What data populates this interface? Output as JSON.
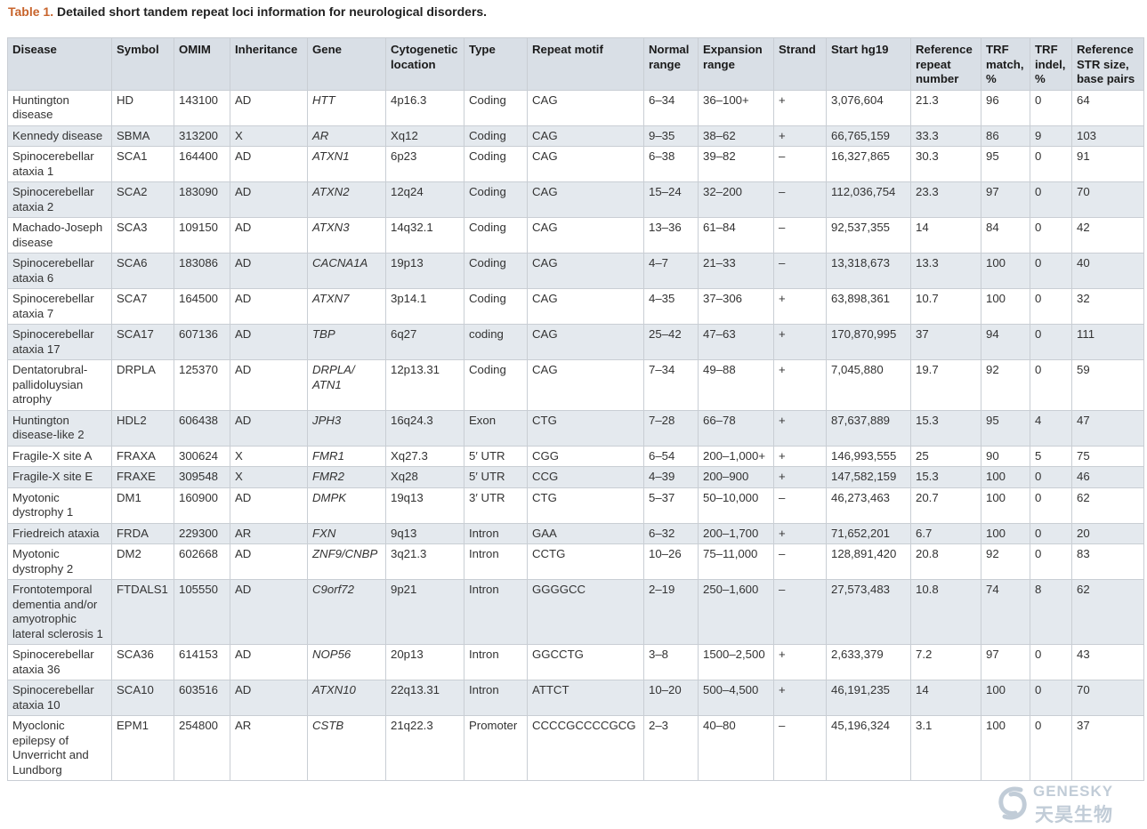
{
  "caption": {
    "label": "Table 1.",
    "text": "Detailed short tandem repeat loci information for neurological disorders."
  },
  "table": {
    "headers": [
      "Disease",
      "Symbol",
      "OMIM",
      "Inheritance",
      "Gene",
      "Cytogenetic location",
      "Type",
      "Repeat motif",
      "Normal range",
      "Expansion range",
      "Strand",
      "Start hg19",
      "Reference repeat number",
      "TRF match, %",
      "TRF indel, %",
      "Reference STR size, base pairs"
    ],
    "rows": [
      [
        "Huntington disease",
        "HD",
        "143100",
        "AD",
        "HTT",
        "4p16.3",
        "Coding",
        "CAG",
        "6–34",
        "36–100+",
        "+",
        "3,076,604",
        "21.3",
        "96",
        "0",
        "64"
      ],
      [
        "Kennedy disease",
        "SBMA",
        "313200",
        "X",
        "AR",
        "Xq12",
        "Coding",
        "CAG",
        "9–35",
        "38–62",
        "+",
        "66,765,159",
        "33.3",
        "86",
        "9",
        "103"
      ],
      [
        "Spinocerebellar ataxia 1",
        "SCA1",
        "164400",
        "AD",
        "ATXN1",
        "6p23",
        "Coding",
        "CAG",
        "6–38",
        "39–82",
        "–",
        "16,327,865",
        "30.3",
        "95",
        "0",
        "91"
      ],
      [
        "Spinocerebellar ataxia 2",
        "SCA2",
        "183090",
        "AD",
        "ATXN2",
        "12q24",
        "Coding",
        "CAG",
        "15–24",
        "32–200",
        "–",
        "112,036,754",
        "23.3",
        "97",
        "0",
        "70"
      ],
      [
        "Machado-Joseph disease",
        "SCA3",
        "109150",
        "AD",
        "ATXN3",
        "14q32.1",
        "Coding",
        "CAG",
        "13–36",
        "61–84",
        "–",
        "92,537,355",
        "14",
        "84",
        "0",
        "42"
      ],
      [
        "Spinocerebellar ataxia 6",
        "SCA6",
        "183086",
        "AD",
        "CACNA1A",
        "19p13",
        "Coding",
        "CAG",
        "4–7",
        "21–33",
        "–",
        "13,318,673",
        "13.3",
        "100",
        "0",
        "40"
      ],
      [
        "Spinocerebellar ataxia 7",
        "SCA7",
        "164500",
        "AD",
        "ATXN7",
        "3p14.1",
        "Coding",
        "CAG",
        "4–35",
        "37–306",
        "+",
        "63,898,361",
        "10.7",
        "100",
        "0",
        "32"
      ],
      [
        "Spinocerebellar ataxia 17",
        "SCA17",
        "607136",
        "AD",
        "TBP",
        "6q27",
        "coding",
        "CAG",
        "25–42",
        "47–63",
        "+",
        "170,870,995",
        "37",
        "94",
        "0",
        "111"
      ],
      [
        "Dentatorubral-pallidoluysian atrophy",
        "DRPLA",
        "125370",
        "AD",
        "DRPLA/ ATN1",
        "12p13.31",
        "Coding",
        "CAG",
        "7–34",
        "49–88",
        "+",
        "7,045,880",
        "19.7",
        "92",
        "0",
        "59"
      ],
      [
        "Huntington disease-like 2",
        "HDL2",
        "606438",
        "AD",
        "JPH3",
        "16q24.3",
        "Exon",
        "CTG",
        "7–28",
        "66–78",
        "+",
        "87,637,889",
        "15.3",
        "95",
        "4",
        "47"
      ],
      [
        "Fragile-X site A",
        "FRAXA",
        "300624",
        "X",
        "FMR1",
        "Xq27.3",
        "5′ UTR",
        "CGG",
        "6–54",
        "200–1,000+",
        "+",
        "146,993,555",
        "25",
        "90",
        "5",
        "75"
      ],
      [
        "Fragile-X site E",
        "FRAXE",
        "309548",
        "X",
        "FMR2",
        "Xq28",
        "5′ UTR",
        "CCG",
        "4–39",
        "200–900",
        "+",
        "147,582,159",
        "15.3",
        "100",
        "0",
        "46"
      ],
      [
        "Myotonic dystrophy 1",
        "DM1",
        "160900",
        "AD",
        "DMPK",
        "19q13",
        "3′ UTR",
        "CTG",
        "5–37",
        "50–10,000",
        "–",
        "46,273,463",
        "20.7",
        "100",
        "0",
        "62"
      ],
      [
        "Friedreich ataxia",
        "FRDA",
        "229300",
        "AR",
        "FXN",
        "9q13",
        "Intron",
        "GAA",
        "6–32",
        "200–1,700",
        "+",
        "71,652,201",
        "6.7",
        "100",
        "0",
        "20"
      ],
      [
        "Myotonic dystrophy 2",
        "DM2",
        "602668",
        "AD",
        "ZNF9/CNBP",
        "3q21.3",
        "Intron",
        "CCTG",
        "10–26",
        "75–11,000",
        "–",
        "128,891,420",
        "20.8",
        "92",
        "0",
        "83"
      ],
      [
        "Frontotemporal dementia and/or amyotrophic lateral sclerosis 1",
        "FTDALS1",
        "105550",
        "AD",
        "C9orf72",
        "9p21",
        "Intron",
        "GGGGCC",
        "2–19",
        "250–1,600",
        "–",
        "27,573,483",
        "10.8",
        "74",
        "8",
        "62"
      ],
      [
        "Spinocerebellar ataxia 36",
        "SCA36",
        "614153",
        "AD",
        "NOP56",
        "20p13",
        "Intron",
        "GGCCTG",
        "3–8",
        "1500–2,500",
        "+",
        "2,633,379",
        "7.2",
        "97",
        "0",
        "43"
      ],
      [
        "Spinocerebellar ataxia 10",
        "SCA10",
        "603516",
        "AD",
        "ATXN10",
        "22q13.31",
        "Intron",
        "ATTCT",
        "10–20",
        "500–4,500",
        "+",
        "46,191,235",
        "14",
        "100",
        "0",
        "70"
      ],
      [
        "Myoclonic epilepsy of Unverricht and Lundborg",
        "EPM1",
        "254800",
        "AR",
        "CSTB",
        "21q22.3",
        "Promoter",
        "CCCCGCCCCGCG",
        "2–3",
        "40–80",
        "–",
        "45,196,324",
        "3.1",
        "100",
        "0",
        "37"
      ]
    ]
  },
  "watermark": {
    "brand_en": "GENESKY",
    "brand_cn": "天昊生物",
    "color": "#8fa3b8"
  }
}
